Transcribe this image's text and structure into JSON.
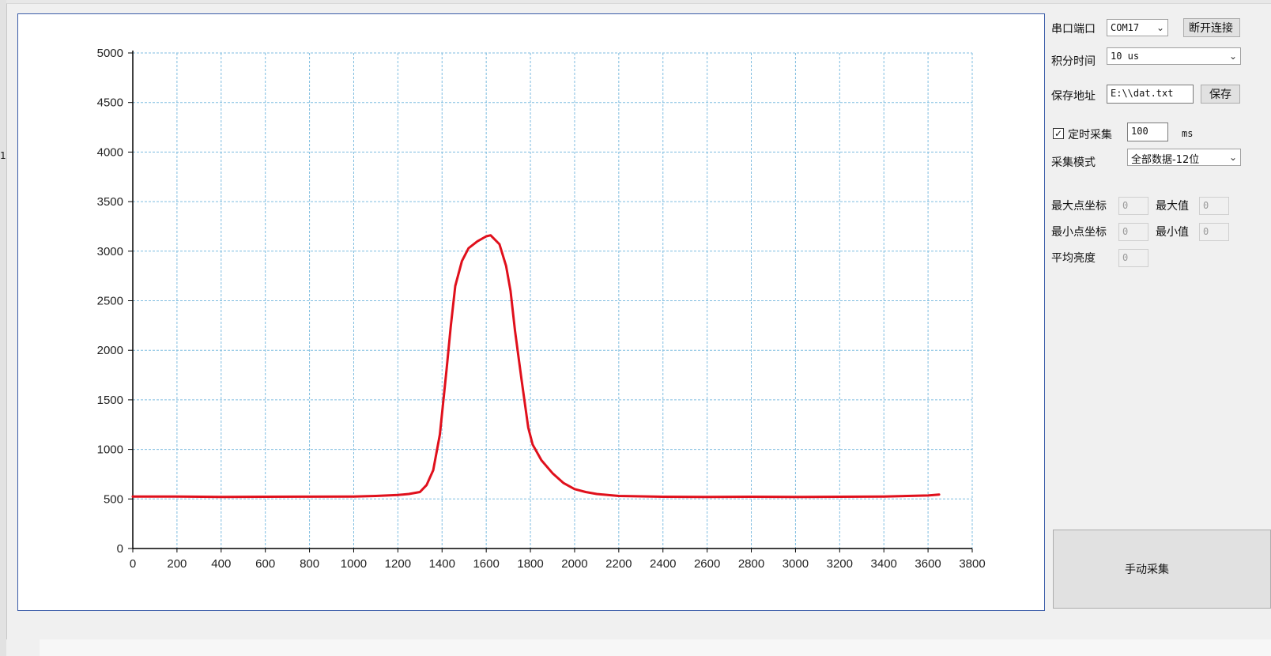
{
  "left_edge_mark": "1",
  "controls": {
    "port_label": "串口端口",
    "port_value": "COM17",
    "disconnect_label": "断开连接",
    "integration_label": "积分时间",
    "integration_value": "10 us",
    "save_path_label": "保存地址",
    "save_path_value": "E:\\\\dat.txt",
    "save_label": "保存",
    "timed_label": "定时采集",
    "timed_checked": true,
    "timed_value": "100",
    "timed_unit": "ms",
    "mode_label": "采集模式",
    "mode_value": "全部数据-12位",
    "max_coord_label": "最大点坐标",
    "max_coord_value": "0",
    "max_value_label": "最大值",
    "max_value_value": "0",
    "min_coord_label": "最小点坐标",
    "min_coord_value": "0",
    "min_value_label": "最小值",
    "min_value_value": "0",
    "avg_label": "平均亮度",
    "avg_value": "0",
    "manual_label": "手动采集"
  },
  "icons": {
    "dropdown": "chevron-down-icon",
    "check": "checkmark-icon"
  },
  "chart_data": {
    "type": "line",
    "title": "",
    "xlabel": "",
    "ylabel": "",
    "xlim": [
      0,
      3800
    ],
    "ylim": [
      0,
      5000
    ],
    "x_ticks": [
      0,
      200,
      400,
      600,
      800,
      1000,
      1200,
      1400,
      1600,
      1800,
      2000,
      2200,
      2400,
      2600,
      2800,
      3000,
      3200,
      3400,
      3600,
      3800
    ],
    "y_ticks": [
      0,
      500,
      1000,
      1500,
      2000,
      2500,
      3000,
      3500,
      4000,
      4500,
      5000
    ],
    "grid": true,
    "line_color": "#e0101c",
    "grid_color": "#7fbde0",
    "series": [
      {
        "x": [
          0,
          200,
          400,
          600,
          800,
          1000,
          1100,
          1200,
          1250,
          1300,
          1330,
          1360,
          1390,
          1420,
          1440,
          1460,
          1490,
          1520,
          1560,
          1600,
          1620,
          1660,
          1690,
          1710,
          1730,
          1760,
          1790,
          1810,
          1850,
          1900,
          1950,
          2000,
          2050,
          2100,
          2200,
          2400,
          2600,
          2800,
          3000,
          3200,
          3400,
          3600,
          3650
        ],
        "y": [
          525,
          525,
          520,
          522,
          523,
          525,
          530,
          540,
          550,
          570,
          640,
          790,
          1150,
          1800,
          2250,
          2650,
          2900,
          3030,
          3100,
          3150,
          3160,
          3070,
          2850,
          2600,
          2200,
          1700,
          1220,
          1050,
          890,
          760,
          660,
          600,
          570,
          550,
          530,
          522,
          520,
          522,
          520,
          522,
          525,
          535,
          545
        ]
      }
    ]
  }
}
